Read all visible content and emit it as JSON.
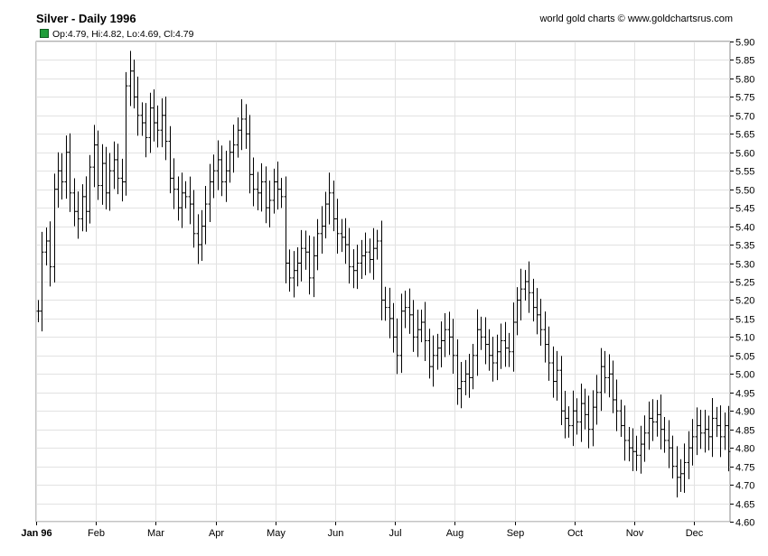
{
  "title": "Silver - Daily 1996",
  "credit": "world gold charts © www.goldchartsrus.com",
  "legend": {
    "ohlc_text": "Op:4.79, Hi:4.82, Lo:4.69, Cl:4.79",
    "swatch_color": "#1f9e3a"
  },
  "colors": {
    "bars": "#000000",
    "grid": "#e2e2e2",
    "axis": "#000000"
  },
  "chart_data": {
    "type": "ohlc-bar",
    "title": "Silver - Daily 1996",
    "xlabel": "",
    "ylabel": "",
    "ylim": [
      4.6,
      5.9
    ],
    "yticks": [
      "5.90",
      "5.85",
      "5.80",
      "5.75",
      "5.70",
      "5.65",
      "5.60",
      "5.55",
      "5.50",
      "5.45",
      "5.40",
      "5.35",
      "5.30",
      "5.25",
      "5.20",
      "5.15",
      "5.10",
      "5.05",
      "5.00",
      "4.95",
      "4.90",
      "4.85",
      "4.80",
      "4.75",
      "4.70",
      "4.65",
      "4.60"
    ],
    "xticks": [
      "Jan 96",
      "Feb",
      "Mar",
      "Apr",
      "May",
      "Jun",
      "Jul",
      "Aug",
      "Sep",
      "Oct",
      "Nov",
      "Dec"
    ],
    "grid": true,
    "close_series_approx": [
      5.17,
      5.33,
      5.36,
      5.29,
      5.5,
      5.55,
      5.52,
      5.6,
      5.49,
      5.44,
      5.42,
      5.48,
      5.44,
      5.56,
      5.62,
      5.51,
      5.57,
      5.49,
      5.55,
      5.58,
      5.53,
      5.52,
      5.78,
      5.82,
      5.75,
      5.7,
      5.68,
      5.64,
      5.72,
      5.68,
      5.66,
      5.7,
      5.63,
      5.53,
      5.5,
      5.45,
      5.49,
      5.48,
      5.46,
      5.38,
      5.35,
      5.4,
      5.46,
      5.52,
      5.55,
      5.58,
      5.52,
      5.55,
      5.6,
      5.62,
      5.66,
      5.69,
      5.65,
      5.54,
      5.5,
      5.49,
      5.52,
      5.45,
      5.47,
      5.52,
      5.5,
      5.48,
      5.3,
      5.26,
      5.28,
      5.3,
      5.34,
      5.33,
      5.26,
      5.32,
      5.38,
      5.4,
      5.46,
      5.49,
      5.42,
      5.38,
      5.37,
      5.35,
      5.29,
      5.28,
      5.3,
      5.32,
      5.33,
      5.31,
      5.34,
      5.36,
      5.2,
      5.18,
      5.15,
      5.1,
      5.05,
      5.17,
      5.18,
      5.16,
      5.1,
      5.12,
      5.14,
      5.09,
      5.02,
      5.05,
      5.07,
      5.09,
      5.12,
      5.1,
      5.05,
      4.96,
      4.98,
      5.0,
      4.99,
      5.05,
      5.12,
      5.1,
      5.08,
      5.05,
      5.03,
      5.06,
      5.09,
      5.07,
      5.06,
      5.14,
      5.2,
      5.23,
      5.25,
      5.22,
      5.18,
      5.16,
      5.12,
      5.08,
      5.03,
      4.98,
      5.01,
      4.9,
      4.88,
      4.86,
      4.9,
      4.87,
      4.92,
      4.89,
      4.85,
      4.91,
      4.95,
      5.02,
      4.99,
      5.0,
      4.93,
      4.9,
      4.86,
      4.82,
      4.8,
      4.79,
      4.78,
      4.81,
      4.84,
      4.88,
      4.87,
      4.89,
      4.85,
      4.82,
      4.8,
      4.75,
      4.72,
      4.73,
      4.76,
      4.8,
      4.83,
      4.86,
      4.84,
      4.85,
      4.83,
      4.88,
      4.86,
      4.83,
      4.86,
      4.79
    ]
  }
}
